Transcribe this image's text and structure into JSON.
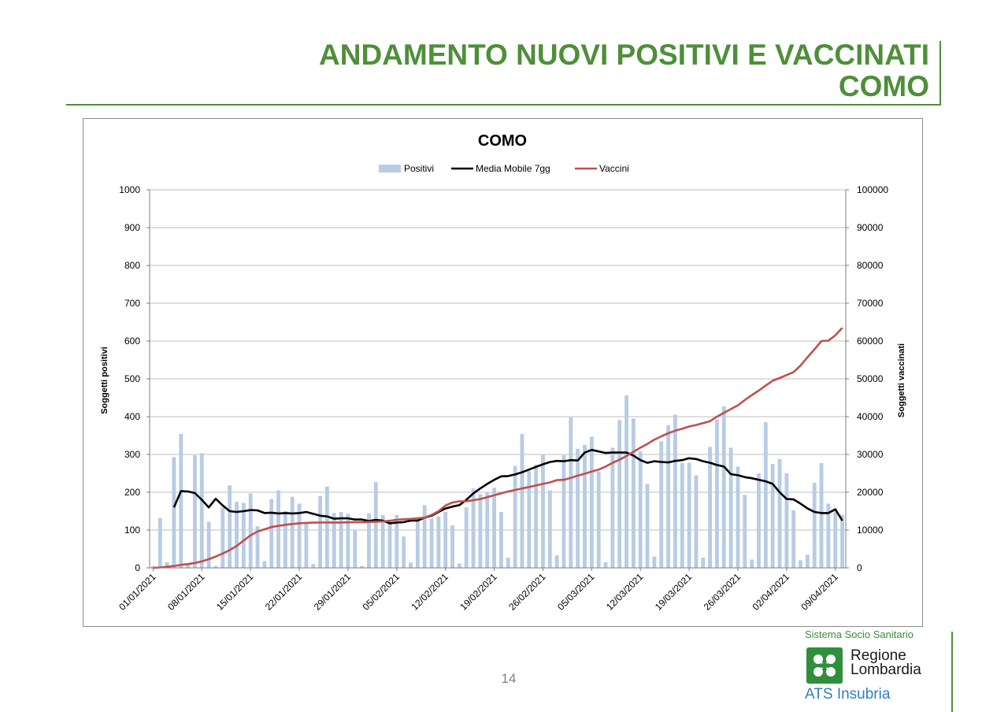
{
  "page": {
    "title_line1": "ANDAMENTO NUOVI POSITIVI E VACCINATI",
    "title_line2": "COMO",
    "page_number": "14"
  },
  "branding": {
    "system_label": "Sistema Socio Sanitario",
    "region_line1": "Regione",
    "region_line2": "Lombardia",
    "agency": "ATS Insubria"
  },
  "colors": {
    "title_green": "#4e8f3a",
    "bars": "#b8cce4",
    "moving_average": "#000000",
    "vaccines": "#c0504d"
  },
  "chart_data": {
    "type": "bar",
    "title": "COMO",
    "ylabel": "Soggetti positivi",
    "y2label": "Soggetti vaccinati",
    "ylim": [
      0,
      1000
    ],
    "y2lim": [
      0,
      100000
    ],
    "yticks": [
      0,
      100,
      200,
      300,
      400,
      500,
      600,
      700,
      800,
      900,
      1000
    ],
    "y2ticks": [
      0,
      10000,
      20000,
      30000,
      40000,
      50000,
      60000,
      70000,
      80000,
      90000,
      100000
    ],
    "grid": true,
    "legend_position": "top",
    "start_date": "01/01/2021",
    "xtick_labels": [
      "01/01/2021",
      "08/01/2021",
      "15/01/2021",
      "22/01/2021",
      "29/01/2021",
      "05/02/2021",
      "12/02/2021",
      "19/02/2021",
      "26/02/2021",
      "05/03/2021",
      "12/03/2021",
      "19/03/2021",
      "26/03/2021",
      "02/04/2021",
      "09/04/2021"
    ],
    "series": [
      {
        "name": "Positivi",
        "kind": "bar",
        "axis": "left",
        "values": [
          5,
          132,
          15,
          293,
          354,
          10,
          298,
          303,
          122,
          5,
          160,
          218,
          175,
          172,
          197,
          110,
          18,
          182,
          205,
          150,
          188,
          170,
          120,
          10,
          190,
          215,
          145,
          148,
          143,
          100,
          5,
          144,
          227,
          140,
          122,
          140,
          83,
          14,
          125,
          166,
          130,
          136,
          148,
          112,
          12,
          160,
          210,
          195,
          200,
          212,
          148,
          27,
          270,
          354,
          256,
          273,
          301,
          205,
          33,
          298,
          398,
          315,
          325,
          347,
          255,
          15,
          318,
          391,
          456,
          395,
          308,
          222,
          30,
          335,
          377,
          405,
          277,
          278,
          245,
          27,
          320,
          392,
          427,
          318,
          268,
          193,
          22,
          250,
          385,
          275,
          288,
          250,
          152,
          20,
          35,
          225,
          277,
          170,
          150,
          140
        ]
      },
      {
        "name": "Media Mobile 7gg",
        "kind": "line",
        "axis": "left",
        "start_index": 3,
        "values": [
          160,
          203,
          202,
          198,
          180,
          160,
          183,
          165,
          150,
          148,
          150,
          153,
          152,
          145,
          146,
          144,
          145,
          144,
          145,
          148,
          143,
          138,
          136,
          130,
          131,
          131,
          128,
          128,
          124,
          127,
          125,
          118,
          120,
          121,
          125,
          125,
          133,
          138,
          148,
          157,
          162,
          166,
          180,
          197,
          210,
          222,
          233,
          242,
          243,
          247,
          253,
          260,
          267,
          274,
          280,
          283,
          282,
          285,
          284,
          305,
          312,
          308,
          304,
          305,
          305,
          305,
          297,
          285,
          278,
          282,
          280,
          279,
          283,
          285,
          290,
          288,
          282,
          278,
          272,
          268,
          248,
          245,
          240,
          237,
          233,
          229,
          222,
          200,
          182,
          181,
          170,
          157,
          148,
          145,
          145,
          155,
          125
        ]
      },
      {
        "name": "Vaccini",
        "kind": "line",
        "axis": "right",
        "values": [
          0,
          100,
          300,
          500,
          800,
          1000,
          1300,
          1700,
          2300,
          3000,
          3800,
          4700,
          5800,
          7200,
          8600,
          9600,
          10200,
          10800,
          11100,
          11400,
          11600,
          11800,
          11900,
          11950,
          12000,
          12000,
          12000,
          12000,
          12050,
          12100,
          12100,
          12150,
          12200,
          12300,
          12450,
          12700,
          12850,
          12950,
          13100,
          13300,
          14000,
          15000,
          16500,
          17300,
          17600,
          17600,
          17900,
          18200,
          18700,
          19200,
          19700,
          20200,
          20600,
          21000,
          21400,
          21800,
          22200,
          22600,
          23200,
          23300,
          23800,
          24400,
          24900,
          25500,
          26000,
          26800,
          27800,
          28600,
          29600,
          30700,
          31800,
          32800,
          33900,
          34800,
          35600,
          36300,
          36800,
          37400,
          37800,
          38300,
          38800,
          40000,
          41000,
          42000,
          43000,
          44400,
          45700,
          46900,
          48200,
          49500,
          50200,
          51000,
          51800,
          53500,
          55700,
          57800,
          60000,
          60100,
          61500,
          63500
        ]
      }
    ]
  }
}
